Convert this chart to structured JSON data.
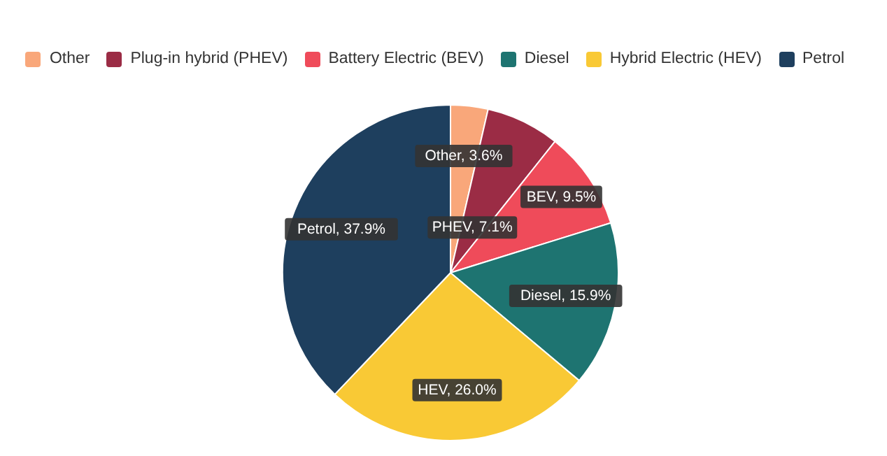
{
  "chart_data": {
    "type": "pie",
    "categories": [
      "Other",
      "Plug-in hybrid (PHEV)",
      "Battery Electric (BEV)",
      "Diesel",
      "Hybrid Electric (HEV)",
      "Petrol"
    ],
    "values": [
      3.6,
      7.1,
      9.5,
      15.9,
      26.0,
      37.9
    ],
    "colors": [
      "#f9a77a",
      "#9b2c45",
      "#ef4b5a",
      "#1e7471",
      "#f9c935",
      "#1e3f5e"
    ],
    "value_labels": [
      "Other, 3.6%",
      "PHEV, 7.1%",
      "BEV, 9.5%",
      "Diesel, 15.9%",
      "HEV, 26.0%",
      "Petrol, 37.9%"
    ],
    "legend": "top"
  }
}
